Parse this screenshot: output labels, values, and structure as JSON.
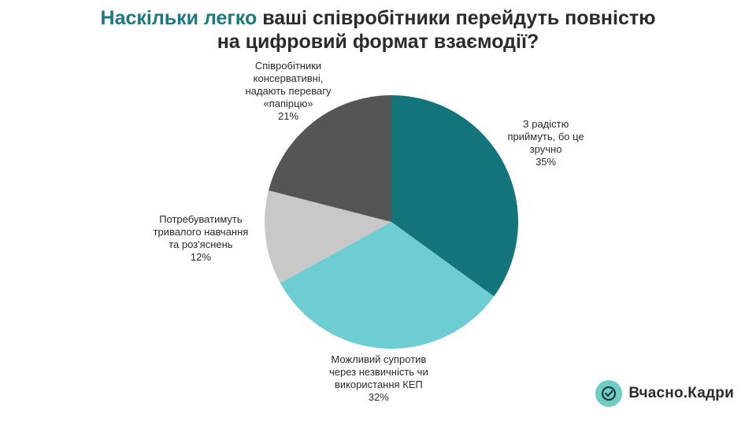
{
  "title": {
    "highlight": "Наскільки легко",
    "rest_line1": " ваші співробітники перейдуть повністю",
    "line2": "на цифровий формат взаємодії?"
  },
  "brand": {
    "name": "Вчасно.Кадри",
    "logo_icon": "check-circle-icon",
    "logo_color": "#6ecdc5"
  },
  "colors": {
    "title_accent": "#1b7a80"
  },
  "chart_data": {
    "type": "pie",
    "title": "Наскільки легко ваші співробітники перейдуть повністю на цифровий формат взаємодії?",
    "slices": [
      {
        "label_lines": [
          "З радістю",
          "приймуть, бо це",
          "зручно"
        ],
        "value": 35,
        "value_label": "35%",
        "color": "#13757b"
      },
      {
        "label_lines": [
          "Можливий супротив",
          "через незвичність чи",
          "використання КЕП"
        ],
        "value": 32,
        "value_label": "32%",
        "color": "#6ecdd3"
      },
      {
        "label_lines": [
          "Потребуватимуть",
          "тривалого навчання",
          "та роз'яснень"
        ],
        "value": 12,
        "value_label": "12%",
        "color": "#c8c8c8"
      },
      {
        "label_lines": [
          "Співробітники",
          "консервативні,",
          "надають перевагу",
          "«папірцю»"
        ],
        "value": 21,
        "value_label": "21%",
        "color": "#555555"
      }
    ]
  }
}
